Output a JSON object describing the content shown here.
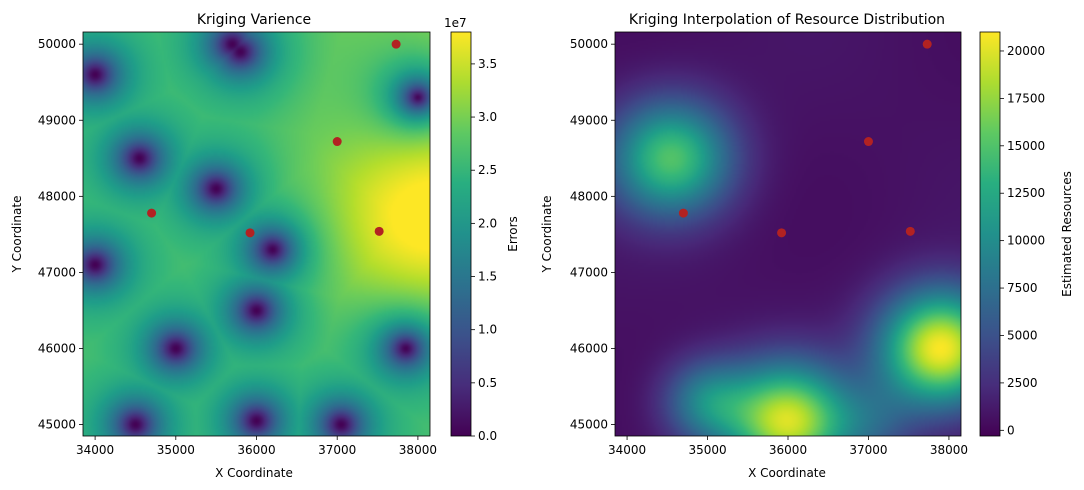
{
  "chart_data": [
    {
      "type": "heatmap",
      "title": "Kriging Varience",
      "xlabel": "X Coordinate",
      "ylabel": "Y Coordinate",
      "xlim": [
        33850,
        38150
      ],
      "ylim": [
        44850,
        50160
      ],
      "xticks": [
        34000,
        35000,
        36000,
        37000,
        38000
      ],
      "xtick_labels": [
        "34000",
        "35000",
        "36000",
        "37000",
        "38000"
      ],
      "yticks": [
        45000,
        46000,
        47000,
        48000,
        49000,
        50000
      ],
      "ytick_labels": [
        "45000",
        "46000",
        "47000",
        "48000",
        "49000",
        "50000"
      ],
      "colormap": "viridis",
      "colorbar": {
        "label": "Errors",
        "min": 0,
        "max": 3.8,
        "offset_label": "1e7",
        "ticks": [
          0,
          0.5,
          1.0,
          1.5,
          2.0,
          2.5,
          3.0,
          3.5
        ],
        "tick_labels": [
          "0.0",
          "0.5",
          "1.0",
          "1.5",
          "2.0",
          "2.5",
          "3.0",
          "3.5"
        ]
      },
      "field": {
        "low_points": [
          [
            34000,
            49600
          ],
          [
            34550,
            48500
          ],
          [
            35500,
            48100
          ],
          [
            35700,
            50000
          ],
          [
            35800,
            49900
          ],
          [
            38000,
            49300
          ],
          [
            34000,
            47100
          ],
          [
            36200,
            47300
          ],
          [
            36000,
            46500
          ],
          [
            35000,
            46000
          ],
          [
            37850,
            46000
          ],
          [
            34500,
            45000
          ],
          [
            36000,
            45050
          ],
          [
            37050,
            45000
          ]
        ],
        "high_points": [
          [
            38150,
            47700
          ]
        ]
      },
      "points": {
        "color": "#b22222",
        "x": [
          34700,
          35920,
          37520,
          37000,
          37730
        ],
        "y": [
          47780,
          47520,
          47540,
          48720,
          50000
        ]
      }
    },
    {
      "type": "heatmap",
      "title": "Kriging Interpolation of Resource Distribution",
      "xlabel": "X Coordinate",
      "ylabel": "Y Coordinate",
      "xlim": [
        33850,
        38150
      ],
      "ylim": [
        44850,
        50160
      ],
      "xticks": [
        34000,
        35000,
        36000,
        37000,
        38000
      ],
      "xtick_labels": [
        "34000",
        "35000",
        "36000",
        "37000",
        "38000"
      ],
      "yticks": [
        45000,
        46000,
        47000,
        48000,
        49000,
        50000
      ],
      "ytick_labels": [
        "45000",
        "46000",
        "47000",
        "48000",
        "49000",
        "50000"
      ],
      "colormap": "viridis",
      "colorbar": {
        "label": "Estimated Resources",
        "min": -300,
        "max": 21000,
        "ticks": [
          0,
          2500,
          5000,
          7500,
          10000,
          12500,
          15000,
          17500,
          20000
        ],
        "tick_labels": [
          "0",
          "2500",
          "5000",
          "7500",
          "10000",
          "12500",
          "15000",
          "17500",
          "20000"
        ]
      },
      "field": {
        "hot_spots": [
          {
            "x": 34550,
            "y": 48500,
            "value": 15000
          },
          {
            "x": 36000,
            "y": 45050,
            "value": 19500
          },
          {
            "x": 37900,
            "y": 46000,
            "value": 21000
          },
          {
            "x": 35000,
            "y": 45300,
            "value": 9000
          },
          {
            "x": 37050,
            "y": 45000,
            "value": 4500
          }
        ]
      },
      "points": {
        "color": "#b22222",
        "x": [
          34700,
          35920,
          37520,
          37000,
          37730
        ],
        "y": [
          47780,
          47520,
          47540,
          48720,
          50000
        ]
      }
    }
  ]
}
